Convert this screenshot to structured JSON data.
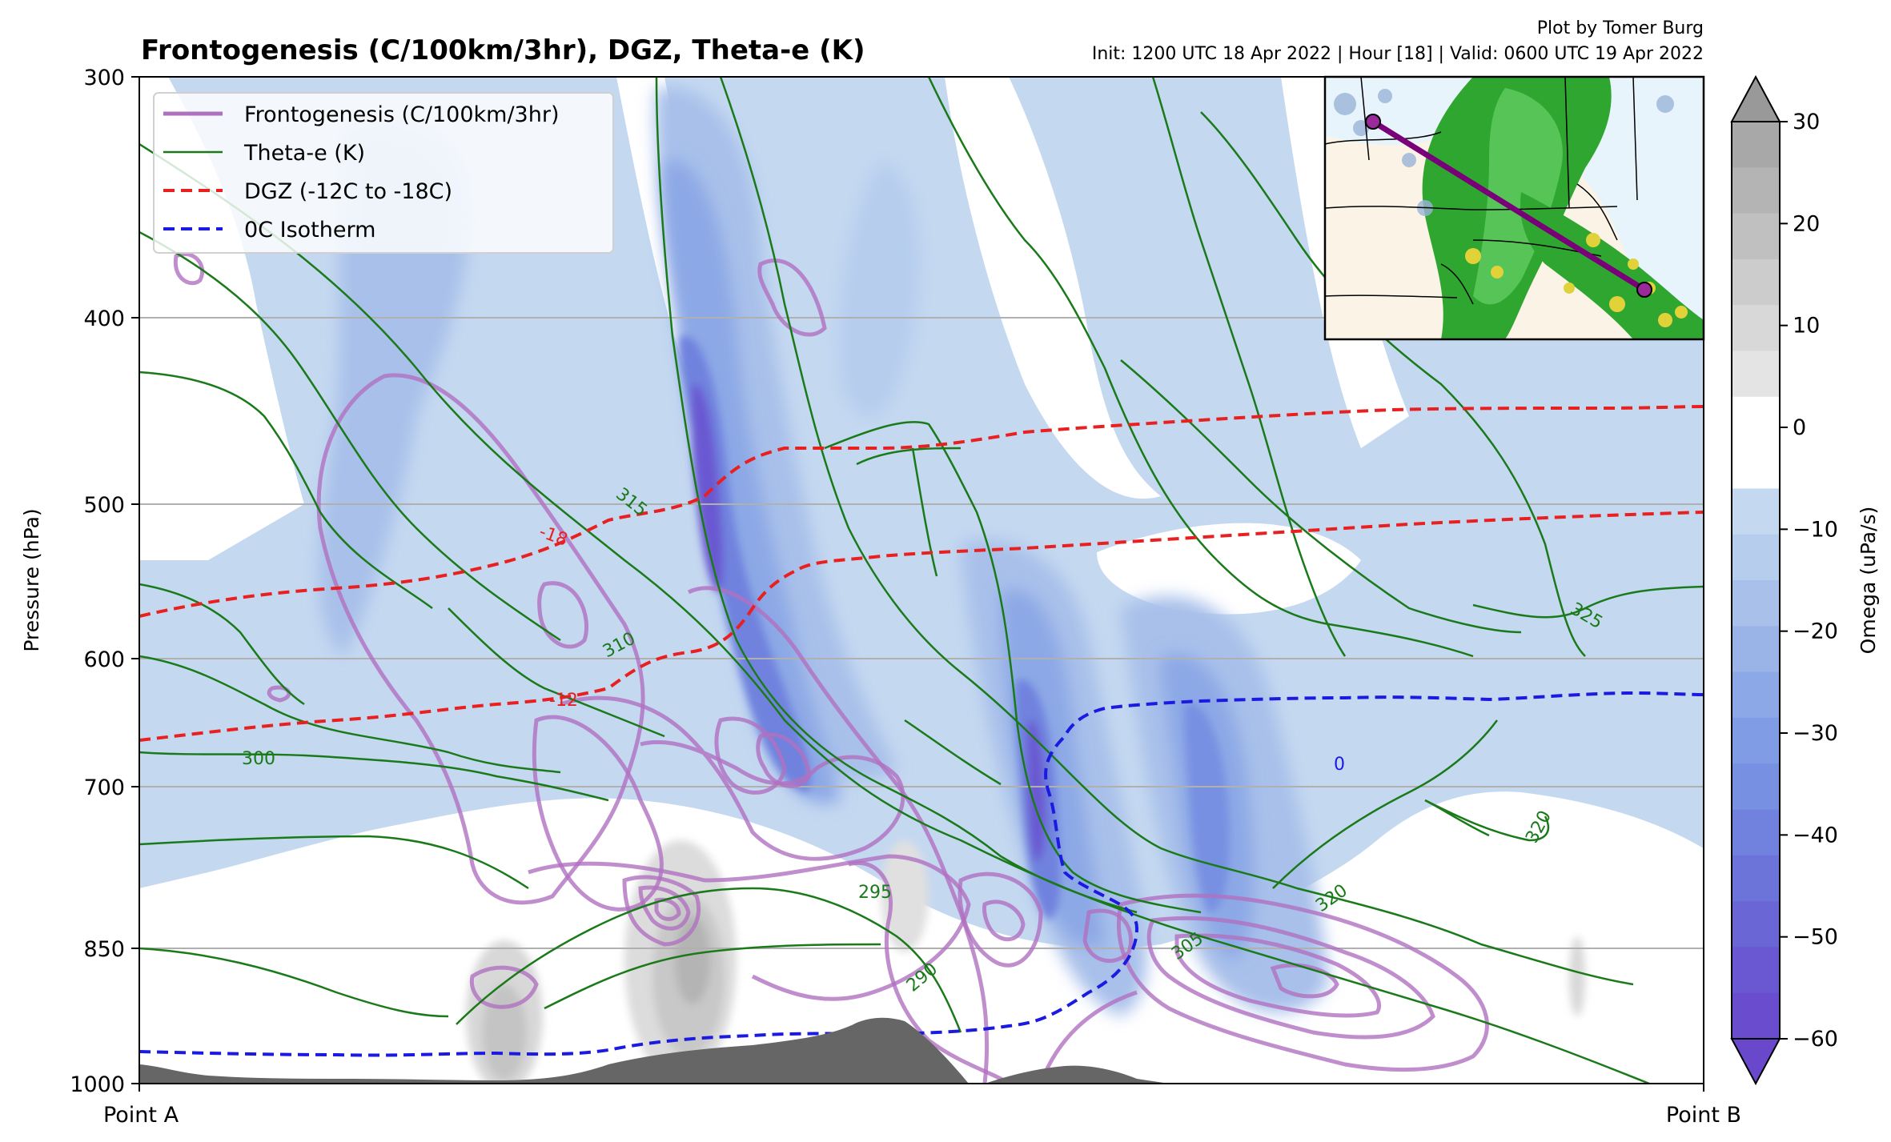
{
  "chart_data": {
    "type": "cross-section",
    "title": "Frontogenesis (C/100km/3hr), DGZ, Theta-e (K)",
    "credit": "Plot by Tomer Burg",
    "run_info": "Init: 1200 UTC 18 Apr 2022 | Hour [18] | Valid: 0600 UTC 19 Apr 2022",
    "ylabel": "Pressure (hPa)",
    "y_scale": "log",
    "ylim": [
      1000,
      300
    ],
    "y_ticks": [
      {
        "value": 300,
        "label": "300"
      },
      {
        "value": 400,
        "label": "400"
      },
      {
        "value": 500,
        "label": "500"
      },
      {
        "value": 600,
        "label": "600"
      },
      {
        "value": 700,
        "label": "700"
      },
      {
        "value": 850,
        "label": "850"
      },
      {
        "value": 1000,
        "label": "1000"
      }
    ],
    "x_ticks": [
      {
        "value": 0,
        "label": "Point A"
      },
      {
        "value": 1,
        "label": "Point B"
      }
    ],
    "grid_levels": [
      400,
      500,
      600,
      700,
      850
    ],
    "legend": {
      "placement": "upper-left",
      "entries": [
        {
          "label": "Frontogenesis (C/100km/3hr)",
          "color": "#b070c0",
          "style": "solid-thick"
        },
        {
          "label": "Theta-e (K)",
          "color": "#1a7a1a",
          "style": "solid"
        },
        {
          "label": "DGZ (-12C to -18C)",
          "color": "#e82020",
          "style": "dashed"
        },
        {
          "label": "0C Isotherm",
          "color": "#1a1ae0",
          "style": "dashed"
        }
      ]
    },
    "colorbar": {
      "label": "Omega (uPa/s)",
      "range": [
        -60,
        30
      ],
      "ticks": [
        "30",
        "20",
        "10",
        "0",
        "−10",
        "−20",
        "−30",
        "−40",
        "−50",
        "−60"
      ],
      "extend": "both",
      "colors_top_to_bottom": [
        "#a8a8a8",
        "#b4b4b4",
        "#c0c0c0",
        "#cccccc",
        "#d8d8d8",
        "#e4e4e4",
        "#ffffff",
        "#ffffff",
        "#c4d8f0",
        "#b6cdee",
        "#a8c0ea",
        "#9ab4e8",
        "#8ca8e6",
        "#809ce4",
        "#7890e2",
        "#7082de",
        "#6c74da",
        "#6a66d6",
        "#6a58d2",
        "#6a4cce"
      ],
      "arrow_top_color": "#999999",
      "arrow_bottom_color": "#6a48cc"
    },
    "series": [
      {
        "name": "Theta-e (K)",
        "contour_labels": [
          "315",
          "310",
          "300",
          "295",
          "290",
          "305",
          "320",
          "320",
          "325"
        ]
      },
      {
        "name": "DGZ (-12C to -18C)",
        "contour_labels": [
          "-18",
          "-12"
        ]
      },
      {
        "name": "0C Isotherm",
        "contour_labels": [
          "0"
        ]
      }
    ],
    "inset_map": {
      "description": "radar reflectivity map with transect line from Point A to Point B",
      "placement": "top-right"
    }
  }
}
